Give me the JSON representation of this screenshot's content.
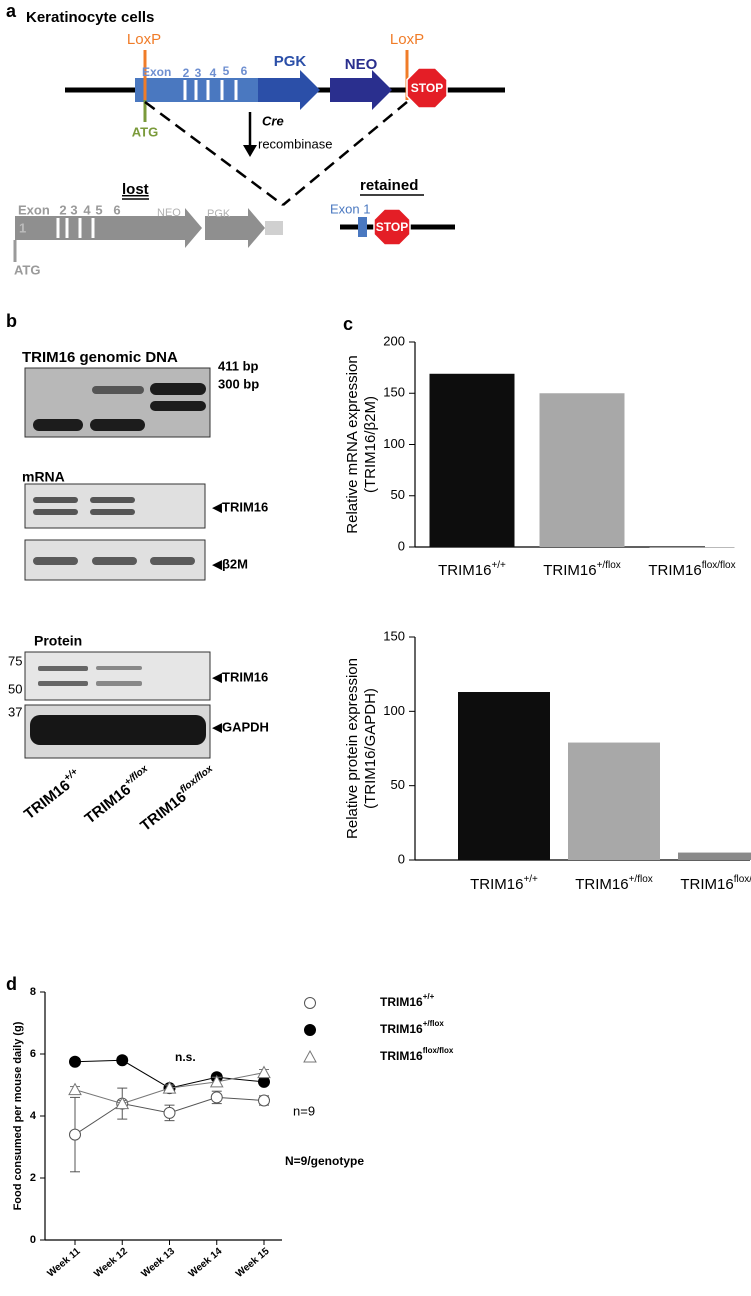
{
  "figure": {
    "panel_a": {
      "letter": "a",
      "title": "Keratinocyte cells",
      "loxp_left": "LoxP",
      "loxp_right": "LoxP",
      "exon_label": "Exon",
      "exon_numbers": [
        "2",
        "3",
        "4",
        "5",
        "6"
      ],
      "pgk": "PGK",
      "neo": "NEO",
      "stop": "STOP",
      "atg": "ATG",
      "cre": "Cre",
      "recombinase": "recombinase",
      "lost": "lost",
      "retained": "retained",
      "lost_exon": "Exon",
      "lost_exon_numbers": [
        "2",
        "3",
        "4",
        "5",
        "6"
      ],
      "lost_exon_1": "1",
      "lost_neo": "NEO",
      "lost_pgk": "PGK",
      "lost_atg": "ATG",
      "retained_exon": "Exon 1",
      "retained_stop": "STOP"
    },
    "panel_b": {
      "letter": "b",
      "dna_title": "TRIM16 genomic DNA",
      "band_411": "411 bp",
      "band_300": "300 bp",
      "mrna_title": "mRNA",
      "mrna_trim16": "◀TRIM16",
      "mrna_b2m": "◀β2M",
      "protein_title": "Protein",
      "markers": [
        "75",
        "50",
        "37"
      ],
      "protein_trim16": "◀TRIM16",
      "protein_gapdh": "◀GAPDH",
      "lanes": [
        {
          "text": "TRIM16",
          "sup": "+/+"
        },
        {
          "text": "TRIM16",
          "sup": "+/flox"
        },
        {
          "text": "TRIM16",
          "sup": "flox/flox"
        }
      ]
    },
    "panel_c_letter": "c",
    "panel_d_letter": "d"
  },
  "chart_data": [
    {
      "type": "bar",
      "ylabel": [
        "Relative mRNA expression",
        "(TRIM16/β2M)"
      ],
      "categories": [
        {
          "text": "TRIM16",
          "sup": "+/+"
        },
        {
          "text": "TRIM16",
          "sup": "+/flox"
        },
        {
          "text": "TRIM16",
          "sup": "flox/flox"
        }
      ],
      "values": [
        169,
        150,
        0
      ],
      "colors": [
        "#0d0d0d",
        "#a8a8a8",
        "#8a8a8a"
      ],
      "ylim": [
        0,
        200
      ],
      "yticks": [
        0,
        50,
        100,
        150,
        200
      ]
    },
    {
      "type": "bar",
      "ylabel": [
        "Relative protein expression",
        "(TRIM16/GAPDH)"
      ],
      "categories": [
        {
          "text": "TRIM16",
          "sup": "+/+"
        },
        {
          "text": "TRIM16",
          "sup": "+/flox"
        },
        {
          "text": "TRIM16",
          "sup": "flox/flox"
        }
      ],
      "values": [
        113,
        79,
        5
      ],
      "colors": [
        "#0d0d0d",
        "#a8a8a8",
        "#8a8a8a"
      ],
      "ylim": [
        0,
        150
      ],
      "yticks": [
        0,
        50,
        100,
        150
      ]
    },
    {
      "type": "line",
      "ylabel": "Food consumed per mouse daily (g)",
      "categories": [
        "Week 11",
        "Week 12",
        "Week 13",
        "Week 14",
        "Week 15"
      ],
      "ylim": [
        0,
        8
      ],
      "yticks": [
        0,
        2,
        4,
        6,
        8
      ],
      "series": [
        {
          "name": {
            "text": "TRIM16",
            "sup": "+/+"
          },
          "marker": "open-circle",
          "color": "#555555",
          "values": [
            3.4,
            4.4,
            4.1,
            4.6,
            4.5
          ],
          "errors": [
            1.2,
            0.5,
            0.25,
            0.2,
            0.15
          ]
        },
        {
          "name": {
            "text": "TRIM16",
            "sup": "+/flox"
          },
          "marker": "filled-circle",
          "color": "#000000",
          "values": [
            5.75,
            5.8,
            4.9,
            5.25,
            5.1
          ],
          "errors": [
            0.1,
            0.1,
            0.1,
            0.1,
            0.1
          ]
        },
        {
          "name": {
            "text": "TRIM16",
            "sup": "flox/flox"
          },
          "marker": "open-triangle",
          "color": "#777777",
          "values": [
            4.85,
            4.4,
            4.9,
            5.1,
            5.4
          ],
          "errors": [
            0.1,
            0.1,
            0.1,
            0.15,
            0.1
          ]
        }
      ],
      "annotations": [
        "n.s.",
        "n=9",
        "N=9/genotype"
      ]
    }
  ]
}
